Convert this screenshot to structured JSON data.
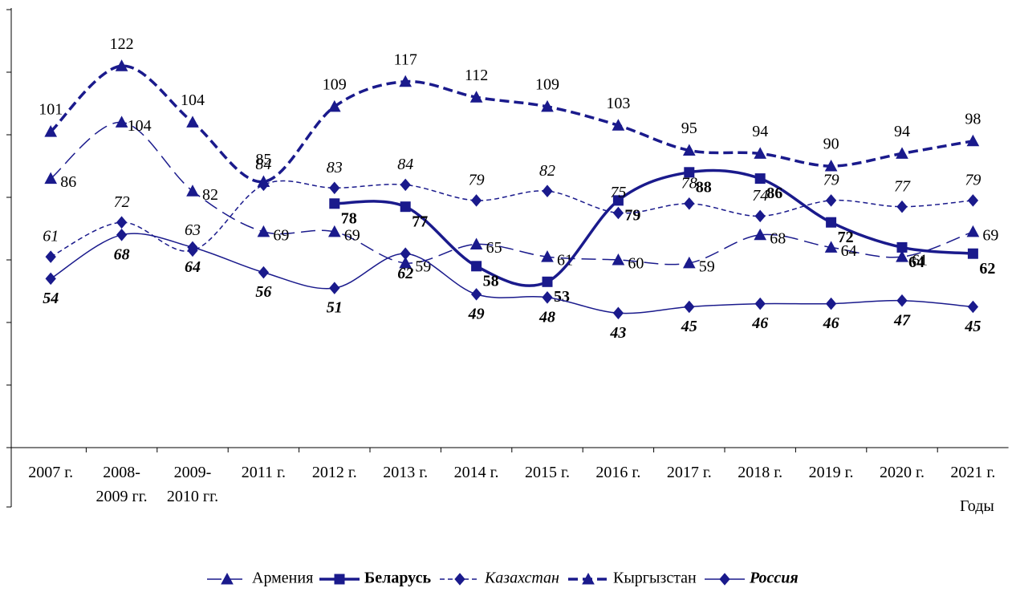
{
  "chart_data": {
    "type": "line",
    "x_label": "Годы",
    "categories": [
      "2007 г.",
      "2008-\n2009 гг.",
      "2009-\n2010 гг.",
      "2011 г.",
      "2012 г.",
      "2013 г.",
      "2014 г.",
      "2015 г.",
      "2016 г.",
      "2017 г.",
      "2018 г.",
      "2019 г.",
      "2020 г.",
      "2021 г."
    ],
    "ylim": [
      0,
      140
    ],
    "yticks": [
      0,
      20,
      40,
      60,
      80,
      100,
      120,
      140
    ],
    "legend": "bottom",
    "series": [
      {
        "name": "Армения",
        "color": "#1a1a8c",
        "dash": "long",
        "width": 1.5,
        "marker": "triangle",
        "font_style": "normal",
        "values": [
          86,
          104,
          82,
          69,
          69,
          59,
          65,
          61,
          60,
          59,
          68,
          64,
          61,
          69
        ]
      },
      {
        "name": "Беларусь",
        "color": "#1a1a8c",
        "dash": "solid",
        "width": 3.5,
        "marker": "square",
        "font_style": "bold",
        "values": [
          null,
          null,
          null,
          null,
          78,
          77,
          58,
          53,
          79,
          88,
          86,
          72,
          64,
          62
        ]
      },
      {
        "name": "Казахстан",
        "color": "#1a1a8c",
        "dash": "short",
        "width": 1.5,
        "marker": "diamond",
        "font_style": "italic",
        "values": [
          61,
          72,
          63,
          84,
          83,
          84,
          79,
          82,
          75,
          78,
          74,
          79,
          77,
          79
        ]
      },
      {
        "name": "Кыргызстан",
        "color": "#1a1a8c",
        "dash": "thick",
        "width": 3.5,
        "marker": "triangle",
        "font_style": "normal",
        "values": [
          101,
          122,
          104,
          85,
          109,
          117,
          112,
          109,
          103,
          95,
          94,
          90,
          94,
          98
        ]
      },
      {
        "name": "Россия",
        "color": "#1a1a8c",
        "dash": "solid",
        "width": 1.5,
        "marker": "diamond",
        "font_style": "bold italic",
        "values": [
          54,
          68,
          64,
          56,
          51,
          62,
          49,
          48,
          43,
          45,
          46,
          46,
          47,
          45
        ]
      }
    ]
  }
}
